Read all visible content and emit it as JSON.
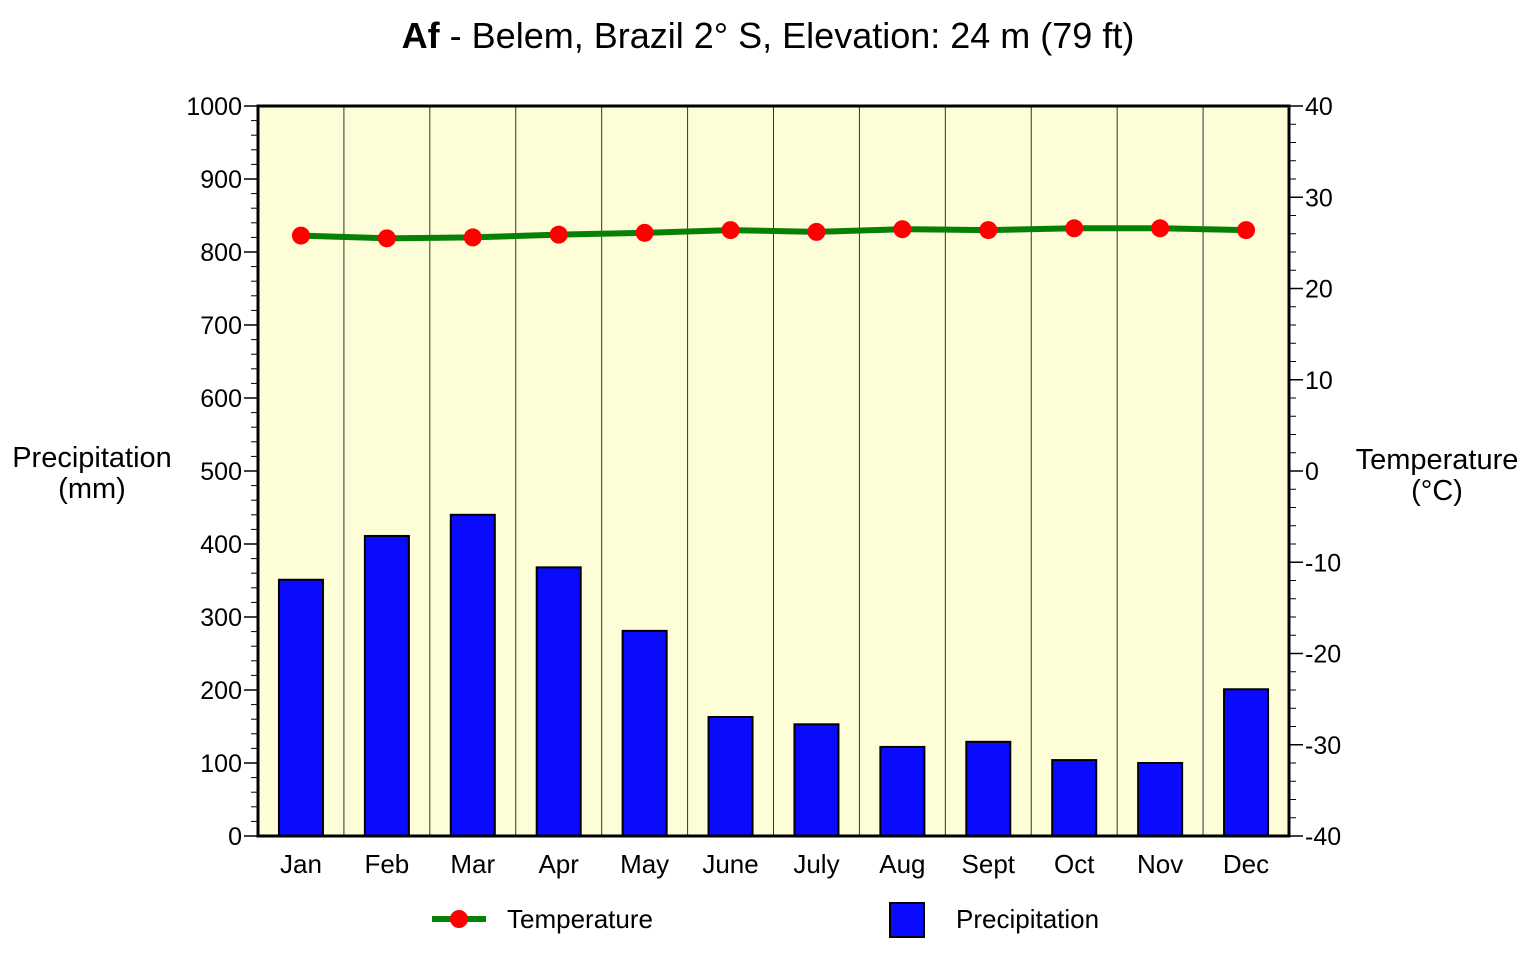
{
  "colors": {
    "plot_bg": "#fdfdd8",
    "bar": "#0a0aff",
    "line": "#078007",
    "marker": "#ff0000"
  },
  "chart_data": {
    "type": "bar+line",
    "title_bold": "Af",
    "title_rest": " - Belem, Brazil 2° S, Elevation: 24 m (79 ft)",
    "categories": [
      "Jan",
      "Feb",
      "Mar",
      "Apr",
      "May",
      "June",
      "July",
      "Aug",
      "Sept",
      "Oct",
      "Nov",
      "Dec"
    ],
    "series": [
      {
        "name": "Precipitation",
        "axis": "left",
        "type": "bar",
        "values": [
          351,
          411,
          440,
          368,
          281,
          163,
          153,
          122,
          129,
          104,
          100,
          201
        ]
      },
      {
        "name": "Temperature",
        "axis": "right",
        "type": "line",
        "values": [
          25.8,
          25.5,
          25.6,
          25.9,
          26.1,
          26.4,
          26.2,
          26.5,
          26.4,
          26.6,
          26.6,
          26.4
        ]
      }
    ],
    "ylabel_left": [
      "Precipitation",
      "(mm)"
    ],
    "ylabel_right": [
      "Temperature",
      "(°C)"
    ],
    "ylim_left": [
      0,
      1000
    ],
    "ylim_right": [
      -40,
      40
    ],
    "left_ticks": [
      0,
      100,
      200,
      300,
      400,
      500,
      600,
      700,
      800,
      900,
      1000
    ],
    "right_ticks": [
      -40,
      -30,
      -20,
      -10,
      0,
      10,
      20,
      30,
      40
    ],
    "legend": {
      "placement": "bottom",
      "items": [
        "Temperature",
        "Precipitation"
      ]
    }
  }
}
